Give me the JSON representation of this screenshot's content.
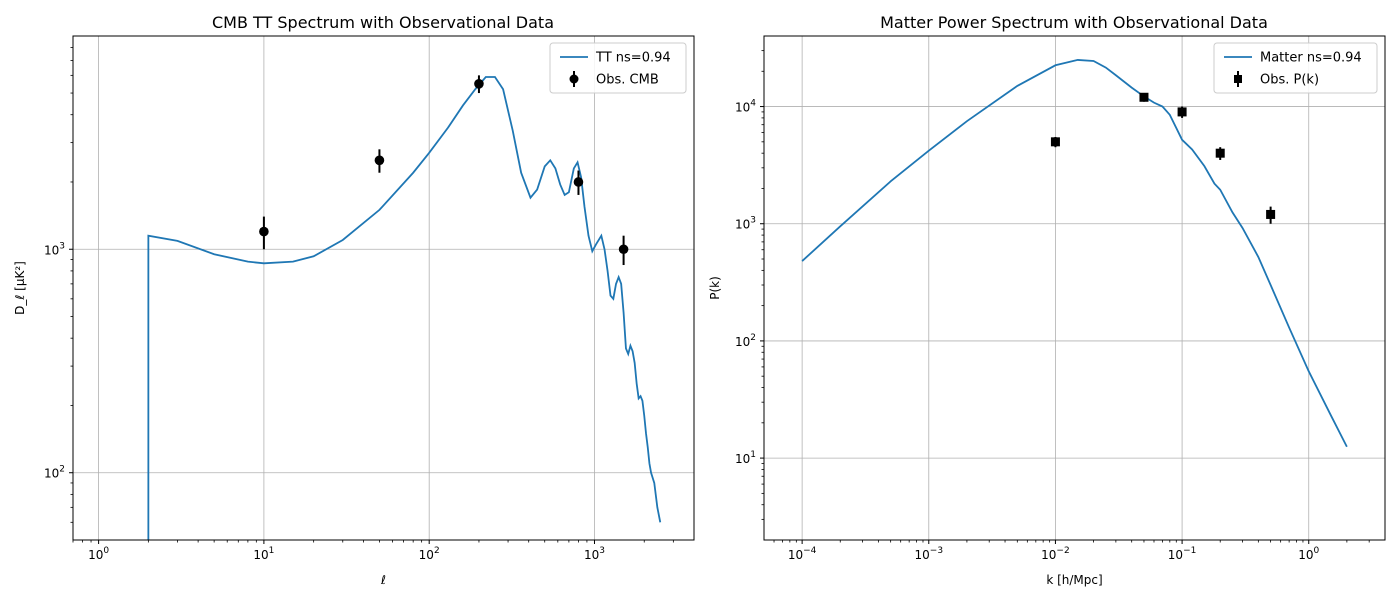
{
  "chart_data": [
    {
      "type": "line",
      "title": "CMB TT Spectrum with Observational Data",
      "xlabel": "ℓ",
      "ylabel": "D_ℓ [μK²]",
      "xscale": "log",
      "yscale": "log",
      "xlim": [
        0.7,
        4000
      ],
      "ylim": [
        50,
        9000
      ],
      "x_ticks": [
        {
          "value": 1,
          "base": "10",
          "exp": "0"
        },
        {
          "value": 10,
          "base": "10",
          "exp": "1"
        },
        {
          "value": 100,
          "base": "10",
          "exp": "2"
        },
        {
          "value": 1000,
          "base": "10",
          "exp": "3"
        }
      ],
      "y_ticks": [
        {
          "value": 100,
          "base": "10",
          "exp": "2"
        },
        {
          "value": 1000,
          "base": "10",
          "exp": "3"
        }
      ],
      "grid": true,
      "legend": "top-right",
      "series": [
        {
          "name": "TT ns=0.94",
          "kind": "line",
          "color": "#1f77b4",
          "x": [
            2,
            2,
            3,
            5,
            8,
            10,
            15,
            20,
            30,
            50,
            80,
            100,
            130,
            160,
            190,
            220,
            250,
            280,
            320,
            360,
            410,
            450,
            500,
            540,
            580,
            620,
            660,
            700,
            750,
            790,
            830,
            870,
            920,
            970,
            1020,
            1100,
            1150,
            1200,
            1250,
            1300,
            1350,
            1400,
            1450,
            1500,
            1550,
            1600,
            1650,
            1700,
            1750,
            1800,
            1850,
            1900,
            1950,
            2000,
            2050,
            2100,
            2150,
            2200,
            2300,
            2400,
            2500
          ],
          "y": [
            50,
            1150,
            1090,
            950,
            880,
            865,
            880,
            930,
            1100,
            1500,
            2200,
            2700,
            3500,
            4400,
            5200,
            5900,
            5900,
            5200,
            3400,
            2200,
            1700,
            1850,
            2350,
            2500,
            2300,
            1950,
            1750,
            1800,
            2300,
            2450,
            2100,
            1550,
            1150,
            980,
            1050,
            1150,
            1000,
            800,
            620,
            600,
            700,
            750,
            700,
            520,
            360,
            340,
            370,
            350,
            310,
            250,
            215,
            220,
            210,
            180,
            150,
            130,
            110,
            100,
            90,
            70,
            60
          ]
        },
        {
          "name": "Obs. CMB",
          "kind": "errorbar",
          "marker": "circle",
          "color": "#000000",
          "x": [
            10,
            50,
            200,
            800,
            1500
          ],
          "y": [
            1200,
            2500,
            5500,
            2000,
            1000
          ],
          "yerr": [
            200,
            300,
            500,
            250,
            150
          ]
        }
      ]
    },
    {
      "type": "line",
      "title": "Matter Power Spectrum with Observational Data",
      "xlabel": "k [h/Mpc]",
      "ylabel": "P(k)",
      "xscale": "log",
      "yscale": "log",
      "xlim": [
        5e-05,
        4
      ],
      "ylim": [
        2,
        40000
      ],
      "x_ticks": [
        {
          "value": 0.0001,
          "base": "10",
          "exp": "−4"
        },
        {
          "value": 0.001,
          "base": "10",
          "exp": "−3"
        },
        {
          "value": 0.01,
          "base": "10",
          "exp": "−2"
        },
        {
          "value": 0.1,
          "base": "10",
          "exp": "−1"
        },
        {
          "value": 1,
          "base": "10",
          "exp": "0"
        }
      ],
      "y_ticks": [
        {
          "value": 10,
          "base": "10",
          "exp": "1"
        },
        {
          "value": 100,
          "base": "10",
          "exp": "2"
        },
        {
          "value": 1000,
          "base": "10",
          "exp": "3"
        },
        {
          "value": 10000,
          "base": "10",
          "exp": "4"
        }
      ],
      "grid": true,
      "legend": "top-right",
      "series": [
        {
          "name": "Matter ns=0.94",
          "kind": "line",
          "color": "#1f77b4",
          "x": [
            0.0001,
            0.0002,
            0.0005,
            0.001,
            0.002,
            0.005,
            0.01,
            0.015,
            0.02,
            0.025,
            0.03,
            0.04,
            0.05,
            0.06,
            0.07,
            0.08,
            0.1,
            0.12,
            0.15,
            0.18,
            0.2,
            0.25,
            0.3,
            0.4,
            0.5,
            0.7,
            1,
            1.5,
            2
          ],
          "y": [
            480,
            950,
            2300,
            4200,
            7500,
            15000,
            22500,
            25000,
            24500,
            21500,
            18500,
            14500,
            12200,
            10800,
            10000,
            8500,
            5200,
            4300,
            3100,
            2200,
            1950,
            1250,
            920,
            520,
            300,
            130,
            55,
            23,
            12.5
          ]
        },
        {
          "name": "Obs. P(k)",
          "kind": "errorbar",
          "marker": "square",
          "color": "#000000",
          "x": [
            0.01,
            0.05,
            0.1,
            0.2,
            0.5
          ],
          "y": [
            5000,
            12000,
            9000,
            4000,
            1200
          ],
          "yerr": [
            500,
            1000,
            1000,
            500,
            200
          ]
        }
      ]
    }
  ]
}
